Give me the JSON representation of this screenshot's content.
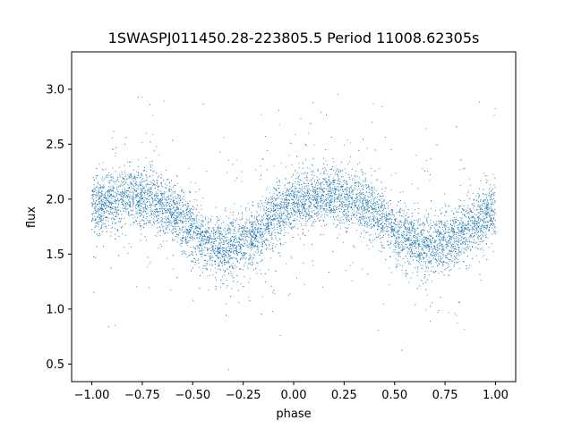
{
  "chart_data": {
    "type": "scatter",
    "title": "1SWASPJ011450.28-223805.5 Period 11008.62305s",
    "xlabel": "phase",
    "ylabel": "flux",
    "xlim": [
      -1.1,
      1.1
    ],
    "ylim": [
      0.34,
      3.34
    ],
    "xticks": [
      -1.0,
      -0.75,
      -0.5,
      -0.25,
      0.0,
      0.25,
      0.5,
      0.75,
      1.0
    ],
    "xtick_labels": [
      "−1.00",
      "−0.75",
      "−0.50",
      "−0.25",
      "0.00",
      "0.25",
      "0.50",
      "0.75",
      "1.00"
    ],
    "yticks": [
      0.5,
      1.0,
      1.5,
      2.0,
      2.5,
      3.0
    ],
    "ytick_labels": [
      "0.5",
      "1.0",
      "1.5",
      "2.0",
      "2.5",
      "3.0"
    ],
    "grid": false,
    "legend": "none",
    "marker_color": "#1f77b4",
    "series": [
      {
        "x": [
          -1.0,
          -0.9,
          -0.8,
          -0.7,
          -0.6,
          -0.5,
          -0.4,
          -0.3,
          -0.2,
          -0.1,
          0.0,
          0.1,
          0.2,
          0.3,
          0.4,
          0.5,
          0.6,
          0.7,
          0.8,
          0.9,
          1.0
        ],
        "values": [
          1.92,
          2.0,
          2.03,
          2.0,
          1.9,
          1.7,
          1.58,
          1.56,
          1.65,
          1.85,
          1.95,
          2.0,
          2.03,
          2.0,
          1.9,
          1.7,
          1.58,
          1.56,
          1.65,
          1.8,
          1.92
        ]
      }
    ]
  }
}
